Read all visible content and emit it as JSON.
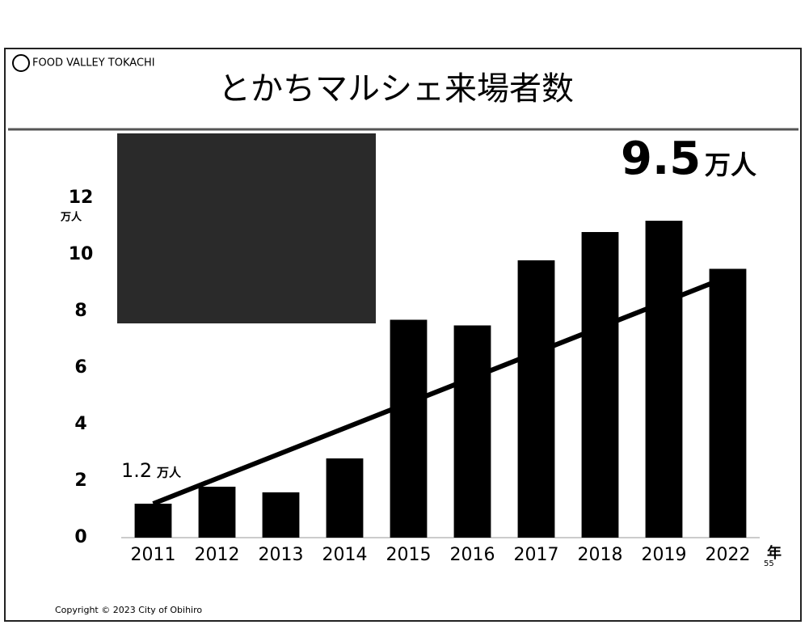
{
  "header": "FOOD VALLEY TOKACHI",
  "footer": "Copyright © 2023 City of  Obihiro",
  "page_number": "55",
  "chart_data": {
    "type": "bar",
    "title": "とかちマルシェ来場者数",
    "categories": [
      "2011",
      "2012",
      "2013",
      "2014",
      "2015",
      "2016",
      "2017",
      "2018",
      "2019",
      "2022"
    ],
    "values": [
      1.2,
      1.8,
      1.6,
      2.8,
      7.7,
      7.5,
      9.8,
      10.8,
      11.2,
      9.5
    ],
    "color": "#000000",
    "ylim": [
      0,
      12
    ],
    "yticks": [
      0,
      2,
      4,
      6,
      8,
      10,
      12
    ],
    "y_unit": "万人",
    "x_unit": "年",
    "annotations": [
      {
        "value": "1.2",
        "unit": "万人"
      },
      {
        "value": "9.5",
        "unit": "万人"
      }
    ],
    "grid": false
  }
}
